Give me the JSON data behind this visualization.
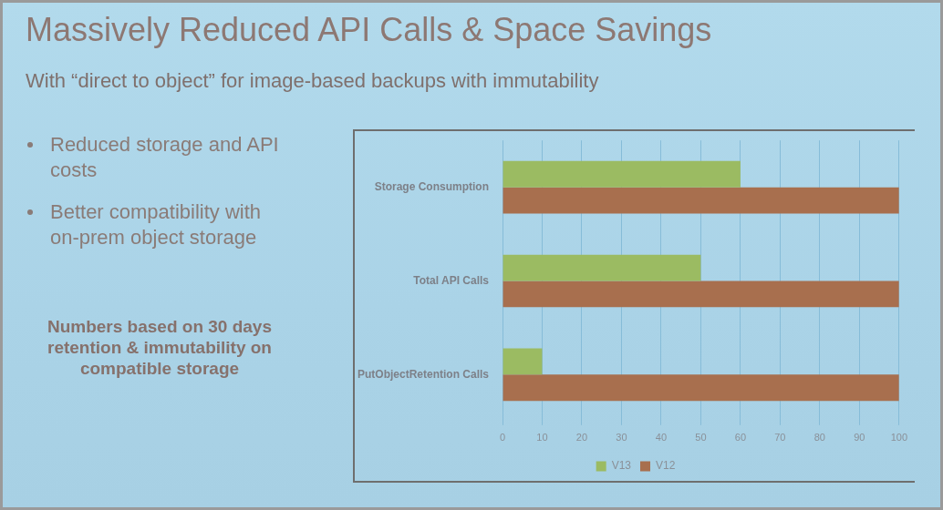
{
  "chart_data": {
    "type": "bar",
    "orientation": "horizontal",
    "title": "Massively Reduced API Calls & Space Savings",
    "subtitle": "With “direct to object” for image-based backups with immutability",
    "categories": [
      "Storage Consumption",
      "Total API Calls",
      "PutObjectRetention Calls"
    ],
    "series": [
      {
        "name": "V13",
        "color": "#9bbb62",
        "values": [
          60,
          50,
          10
        ]
      },
      {
        "name": "V12",
        "color": "#a86f4e",
        "values": [
          100,
          100,
          100
        ]
      }
    ],
    "xlim": [
      0,
      100
    ],
    "xticks": [
      0,
      10,
      20,
      30,
      40,
      50,
      60,
      70,
      80,
      90,
      100
    ],
    "grid": "x",
    "legend": "bottom",
    "annotations": [
      "Reduced storage and API costs",
      "Better compatibility with on-prem object storage",
      "Numbers based on 30 days retention & immutability on compatible storage"
    ]
  }
}
